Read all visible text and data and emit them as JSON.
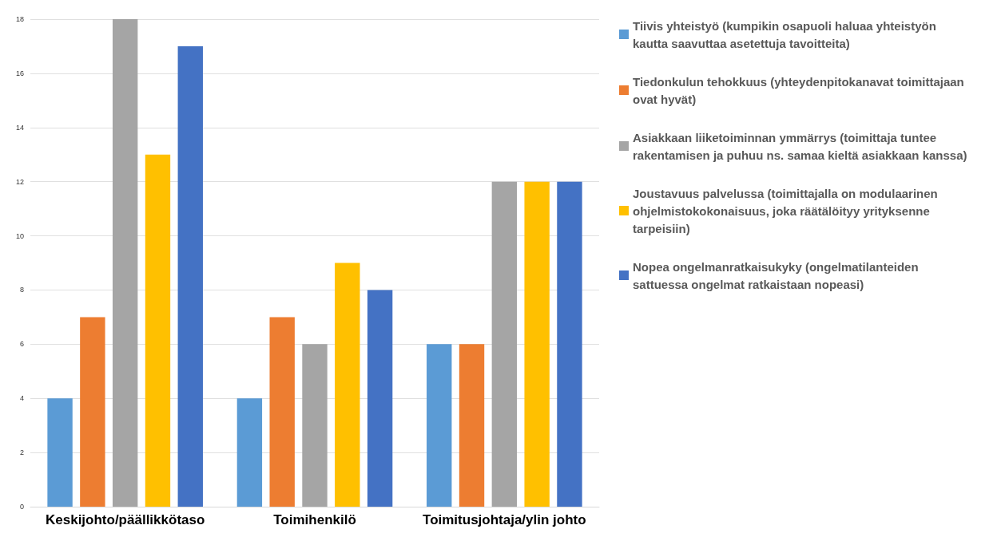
{
  "chart_data": {
    "type": "bar",
    "categories": [
      "Keskijohto/päällikkötaso",
      "Toimihenkilö",
      "Toimitusjohtaja/ylin johto"
    ],
    "series": [
      {
        "name": "Tiivis yhteistyö (kumpikin osapuoli haluaa yhteistyön kautta saavuttaa asetettuja tavoitteita)",
        "color": "#5b9bd5",
        "values": [
          4,
          4,
          6
        ]
      },
      {
        "name": "Tiedonkulun tehokkuus (yhteydenpitokanavat toimittajaan ovat hyvät)",
        "color": "#ed7d31",
        "values": [
          7,
          7,
          6
        ]
      },
      {
        "name": "Asiakkaan liiketoiminnan ymmärrys (toimittaja tuntee rakentamisen ja puhuu ns. samaa kieltä asiakkaan kanssa)",
        "color": "#a5a5a5",
        "values": [
          18,
          6,
          12
        ]
      },
      {
        "name": "Joustavuus palvelussa (toimittajalla on modulaarinen ohjelmistokokonaisuus, joka räätälöityy yrityksenne tarpeisiin)",
        "color": "#ffc000",
        "values": [
          13,
          9,
          12
        ]
      },
      {
        "name": "Nopea ongelmanratkaisukyky (ongelmatilanteiden sattuessa ongelmat ratkaistaan nopeasi)",
        "color": "#4472c4",
        "values": [
          17,
          8,
          12
        ]
      }
    ],
    "ylim": [
      0,
      18
    ],
    "yticks": [
      0,
      2,
      4,
      6,
      8,
      10,
      12,
      14,
      16,
      18
    ],
    "grid": "y",
    "legend": "right"
  }
}
